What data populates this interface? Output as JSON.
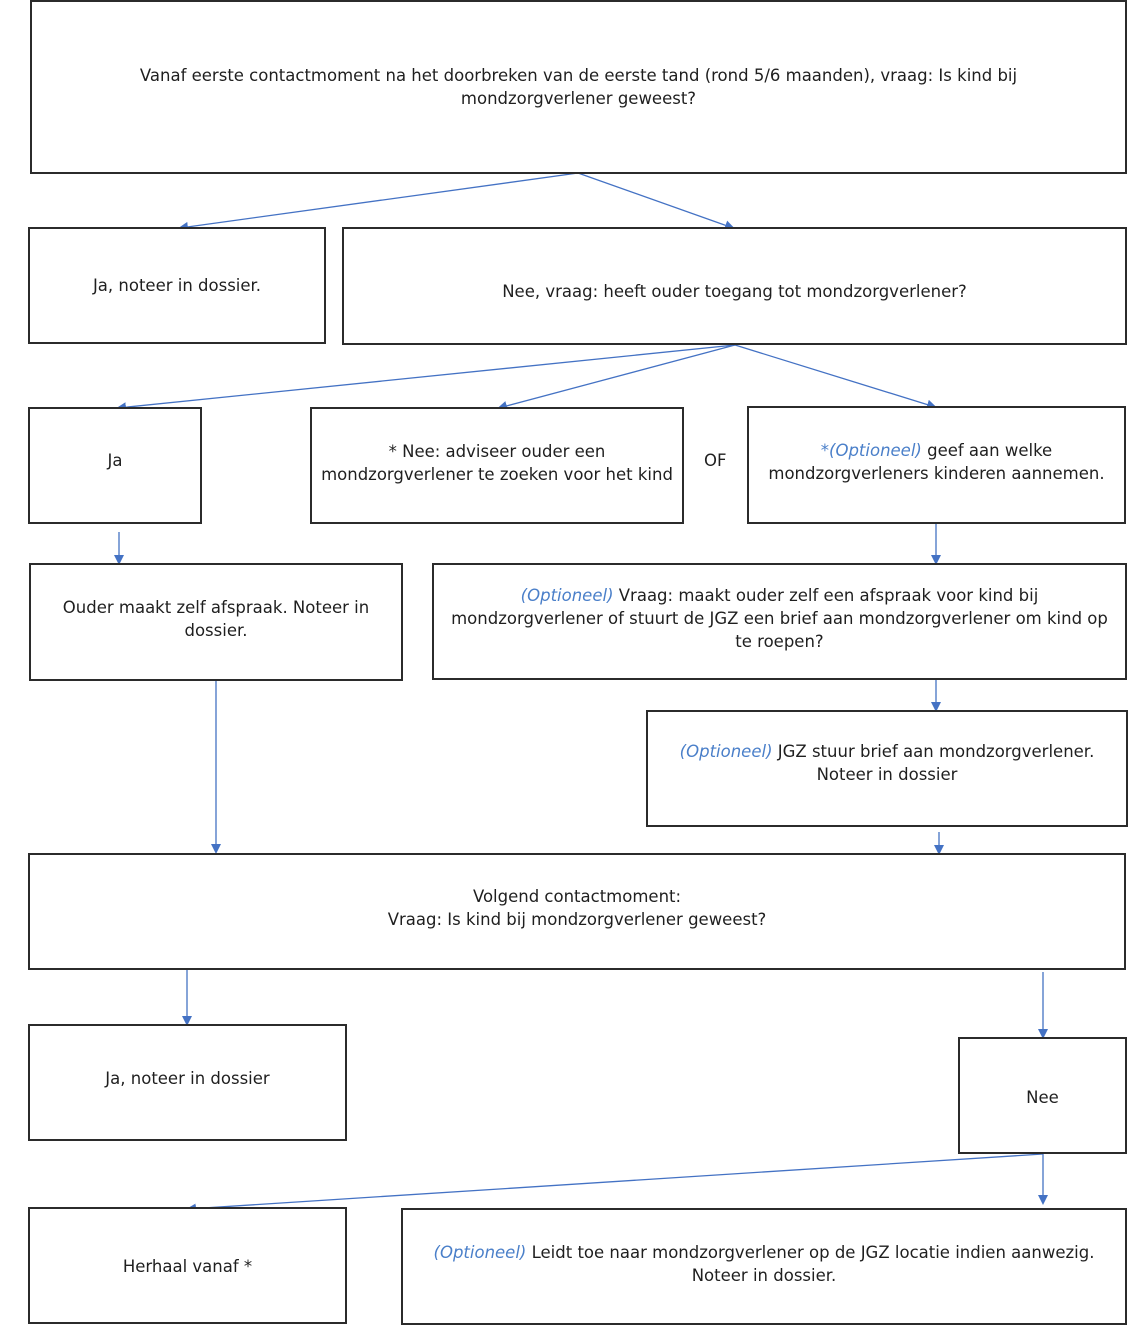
{
  "boxes": {
    "start": {
      "line1": "Vanaf eerste contactmoment na het doorbreken van de eerste tand (rond 5/6 maanden), vraag: Is kind bij",
      "line2": "mondzorgverlener geweest?"
    },
    "ja_noteer": "Ja, noteer in dossier.",
    "nee_vraag": "Nee, vraag: heeft ouder toegang tot mondzorgverlener?",
    "ja": "Ja",
    "nee_adviseer": {
      "line1": "* Nee: adviseer ouder een",
      "line2": "mondzorgverlener te zoeken voor het kind"
    },
    "of": "OF",
    "optioneel_welke": {
      "prefix": "*(Optioneel)",
      "line1": " geef aan welke",
      "line2": "mondzorgverleners kinderen aannemen."
    },
    "ouder_afspraak": {
      "line1": "Ouder maakt zelf afspraak. Noteer in",
      "line2": "dossier."
    },
    "optioneel_vraag": {
      "prefix": "(Optioneel)",
      "line1": " Vraag: maakt ouder zelf een afspraak voor kind bij",
      "line2": "mondzorgverlener of stuurt de JGZ een brief aan mondzorgverlener om kind op",
      "line3": "te roepen?"
    },
    "optioneel_brief": {
      "prefix": "(Optioneel)",
      "line1": " JGZ stuur brief aan mondzorgverlener.",
      "line2": "Noteer in dossier"
    },
    "volgend": {
      "line1": "Volgend contactmoment:",
      "line2": "Vraag: Is kind bij mondzorgverlener geweest?"
    },
    "ja_noteer2": "Ja, noteer in dossier",
    "nee": "Nee",
    "herhaal": "Herhaal vanaf *",
    "optioneel_leidt": {
      "prefix": "(Optioneel)",
      "line1": " Leidt toe naar mondzorgverlener op de JGZ locatie indien aanwezig.",
      "line2": "Noteer in dossier."
    }
  },
  "colors": {
    "arrow": "#4472c4",
    "optional_text": "#4a7fc9",
    "border": "#2b2b2b"
  }
}
